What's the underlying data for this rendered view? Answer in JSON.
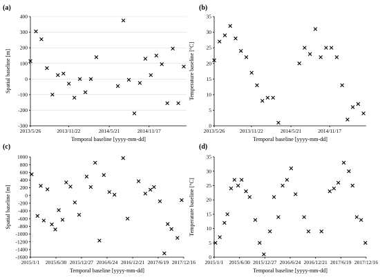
{
  "chart_data": [
    {
      "panel": "(a)",
      "type": "scatter",
      "marker": "x",
      "xlabel": "Temporal baseline [yyyy-mm-dd]",
      "ylabel": "Spatial baseline [m]",
      "x_ticks": [
        "2013/5/26",
        "2013/11/22",
        "2014/5/21",
        "2014/11/17"
      ],
      "ylim": [
        -300,
        400
      ],
      "y_ticks": [
        -300,
        -200,
        -100,
        0,
        100,
        200,
        300,
        400
      ],
      "grid": true,
      "points": [
        {
          "x": "2013-05-26",
          "y": 115
        },
        {
          "x": "2013-06-17",
          "y": 305
        },
        {
          "x": "2013-07-09",
          "y": 255
        },
        {
          "x": "2013-07-31",
          "y": 70
        },
        {
          "x": "2013-08-22",
          "y": -100
        },
        {
          "x": "2013-09-13",
          "y": 25
        },
        {
          "x": "2013-10-05",
          "y": 35
        },
        {
          "x": "2013-10-27",
          "y": -30
        },
        {
          "x": "2013-11-18",
          "y": -120
        },
        {
          "x": "2013-12-10",
          "y": 0
        },
        {
          "x": "2014-01-01",
          "y": -85
        },
        {
          "x": "2014-01-23",
          "y": 0
        },
        {
          "x": "2014-02-14",
          "y": 140
        },
        {
          "x": "2014-05-11",
          "y": -45
        },
        {
          "x": "2014-06-02",
          "y": 375
        },
        {
          "x": "2014-06-24",
          "y": -5
        },
        {
          "x": "2014-07-16",
          "y": -220
        },
        {
          "x": "2014-08-07",
          "y": -25
        },
        {
          "x": "2014-08-29",
          "y": 130
        },
        {
          "x": "2014-09-20",
          "y": 25
        },
        {
          "x": "2014-10-12",
          "y": 150
        },
        {
          "x": "2014-11-03",
          "y": 95
        },
        {
          "x": "2014-11-25",
          "y": -155
        },
        {
          "x": "2014-12-17",
          "y": 195
        },
        {
          "x": "2015-01-08",
          "y": -155
        },
        {
          "x": "2015-01-30",
          "y": 80
        }
      ]
    },
    {
      "panel": "(b)",
      "type": "scatter",
      "marker": "x",
      "xlabel": "Temporal baseline [yyyy-mm-dd]",
      "ylabel": "Temperature baseline [°C]",
      "x_ticks": [
        "2013/5/26",
        "2013/11/22",
        "2014/5/21",
        "2014/11/17"
      ],
      "ylim": [
        0,
        35
      ],
      "y_ticks": [
        0,
        5,
        10,
        15,
        20,
        25,
        30,
        35
      ],
      "grid": false,
      "points": [
        {
          "x": "2013-05-26",
          "y": 21
        },
        {
          "x": "2013-06-17",
          "y": 27
        },
        {
          "x": "2013-07-09",
          "y": 29
        },
        {
          "x": "2013-07-31",
          "y": 32
        },
        {
          "x": "2013-08-22",
          "y": 28
        },
        {
          "x": "2013-09-13",
          "y": 24
        },
        {
          "x": "2013-10-05",
          "y": 22
        },
        {
          "x": "2013-10-27",
          "y": 17
        },
        {
          "x": "2013-11-18",
          "y": 13
        },
        {
          "x": "2013-12-10",
          "y": 8
        },
        {
          "x": "2014-01-01",
          "y": 9
        },
        {
          "x": "2014-01-23",
          "y": 9
        },
        {
          "x": "2014-02-14",
          "y": 1
        },
        {
          "x": "2014-05-11",
          "y": 20
        },
        {
          "x": "2014-06-02",
          "y": 25
        },
        {
          "x": "2014-06-24",
          "y": 23
        },
        {
          "x": "2014-07-16",
          "y": 31
        },
        {
          "x": "2014-08-07",
          "y": 22
        },
        {
          "x": "2014-08-29",
          "y": 25
        },
        {
          "x": "2014-09-20",
          "y": 25
        },
        {
          "x": "2014-10-12",
          "y": 22
        },
        {
          "x": "2014-11-03",
          "y": 13
        },
        {
          "x": "2014-11-25",
          "y": 2
        },
        {
          "x": "2014-12-17",
          "y": 6
        },
        {
          "x": "2015-01-08",
          "y": 7
        },
        {
          "x": "2015-01-30",
          "y": 4
        }
      ]
    },
    {
      "panel": "(c)",
      "type": "scatter",
      "marker": "x",
      "xlabel": "Temporal baseline [yyyy-mm-dd]",
      "ylabel": "Spatial baseline [m]",
      "x_ticks": [
        "2015/1/1",
        "2015/6/30",
        "2015/12/27",
        "2016/6/24",
        "2016/12/21",
        "2017/6/19",
        "2017/12/16"
      ],
      "ylim": [
        -1600,
        1000
      ],
      "y_ticks": [
        -1600,
        -1400,
        -1200,
        -1000,
        -800,
        -600,
        -400,
        -200,
        0,
        200,
        400,
        600,
        800,
        1000
      ],
      "grid": false,
      "points": [
        {
          "x": "2015-01-10",
          "y": 550
        },
        {
          "x": "2015-02-20",
          "y": -530
        },
        {
          "x": "2015-03-15",
          "y": 250
        },
        {
          "x": "2015-04-05",
          "y": -650
        },
        {
          "x": "2015-05-01",
          "y": 160
        },
        {
          "x": "2015-06-01",
          "y": -750
        },
        {
          "x": "2015-06-25",
          "y": -880
        },
        {
          "x": "2015-07-20",
          "y": -380
        },
        {
          "x": "2015-08-15",
          "y": -630
        },
        {
          "x": "2015-09-10",
          "y": 340
        },
        {
          "x": "2015-10-10",
          "y": 230
        },
        {
          "x": "2015-11-10",
          "y": -180
        },
        {
          "x": "2015-12-10",
          "y": -500
        },
        {
          "x": "2016-02-01",
          "y": 490
        },
        {
          "x": "2016-03-01",
          "y": 220
        },
        {
          "x": "2016-04-01",
          "y": 850
        },
        {
          "x": "2016-05-01",
          "y": -1170
        },
        {
          "x": "2016-06-01",
          "y": 530
        },
        {
          "x": "2016-07-10",
          "y": 90
        },
        {
          "x": "2016-08-15",
          "y": 20
        },
        {
          "x": "2016-10-15",
          "y": 970
        },
        {
          "x": "2016-11-15",
          "y": -600
        },
        {
          "x": "2017-02-01",
          "y": 370
        },
        {
          "x": "2017-03-20",
          "y": 50
        },
        {
          "x": "2017-04-25",
          "y": 150
        },
        {
          "x": "2017-05-20",
          "y": 220
        },
        {
          "x": "2017-07-01",
          "y": -150
        },
        {
          "x": "2017-08-01",
          "y": -1500
        },
        {
          "x": "2017-08-25",
          "y": -740
        },
        {
          "x": "2017-09-20",
          "y": -870
        },
        {
          "x": "2017-11-01",
          "y": -1100
        },
        {
          "x": "2017-12-01",
          "y": -120
        }
      ]
    },
    {
      "panel": "(d)",
      "type": "scatter",
      "marker": "x",
      "xlabel": "Temporal baseline [yyyy-mm-dd]",
      "ylabel": "Temperature baseline [°C]",
      "x_ticks": [
        "2015/1/1",
        "2015/6/30",
        "2015/12/27",
        "2016/6/24",
        "2016/12/21",
        "2017/6/19",
        "2017/12/16"
      ],
      "ylim": [
        0,
        35
      ],
      "y_ticks": [
        0,
        5,
        10,
        15,
        20,
        25,
        30,
        35
      ],
      "grid": false,
      "points": [
        {
          "x": "2015-01-10",
          "y": 5
        },
        {
          "x": "2015-02-10",
          "y": 7
        },
        {
          "x": "2015-03-15",
          "y": 12
        },
        {
          "x": "2015-04-05",
          "y": 15
        },
        {
          "x": "2015-05-01",
          "y": 24
        },
        {
          "x": "2015-05-25",
          "y": 27
        },
        {
          "x": "2015-06-20",
          "y": 25
        },
        {
          "x": "2015-07-15",
          "y": 27
        },
        {
          "x": "2015-08-15",
          "y": 23
        },
        {
          "x": "2015-09-10",
          "y": 21
        },
        {
          "x": "2015-10-20",
          "y": 13
        },
        {
          "x": "2015-11-20",
          "y": 5
        },
        {
          "x": "2015-12-20",
          "y": 1
        },
        {
          "x": "2016-02-01",
          "y": 9
        },
        {
          "x": "2016-03-01",
          "y": 21
        },
        {
          "x": "2016-04-01",
          "y": 14
        },
        {
          "x": "2016-05-01",
          "y": 25
        },
        {
          "x": "2016-06-01",
          "y": 27
        },
        {
          "x": "2016-07-01",
          "y": 31
        },
        {
          "x": "2016-08-01",
          "y": 22
        },
        {
          "x": "2016-10-01",
          "y": 14
        },
        {
          "x": "2016-11-01",
          "y": 9
        },
        {
          "x": "2017-02-01",
          "y": 9
        },
        {
          "x": "2017-04-01",
          "y": 23
        },
        {
          "x": "2017-05-01",
          "y": 24
        },
        {
          "x": "2017-06-01",
          "y": 26
        },
        {
          "x": "2017-07-10",
          "y": 33
        },
        {
          "x": "2017-08-15",
          "y": 30
        },
        {
          "x": "2017-09-10",
          "y": 25
        },
        {
          "x": "2017-10-10",
          "y": 14
        },
        {
          "x": "2017-11-10",
          "y": 13
        },
        {
          "x": "2017-12-10",
          "y": 5
        }
      ]
    }
  ]
}
